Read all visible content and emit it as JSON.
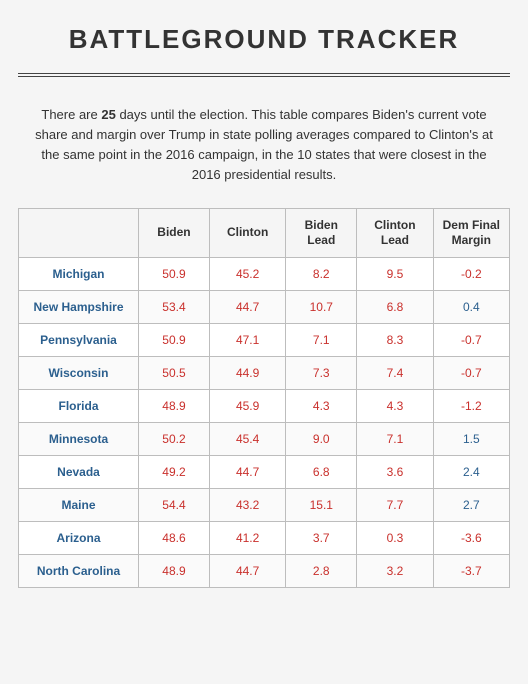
{
  "title": "BATTLEGROUND TRACKER",
  "intro_part1": "There are ",
  "days": "25",
  "intro_part2": " days until the election. This table compares Biden's current vote share and margin over Trump in state polling averages compared to Clinton's at the same point in the 2016 campaign, in the 10 states that were closest in the 2016 presidential results.",
  "columns": [
    "",
    "Biden",
    "Clinton",
    "Biden Lead",
    "Clinton Lead",
    "Dem Final Margin"
  ],
  "colors": {
    "red": "#c9302c",
    "blue": "#2b5f8e",
    "border": "#bdbdbd",
    "text": "#333333",
    "bg": "#f5f5f5"
  },
  "rows": [
    {
      "state": "Michigan",
      "biden": "50.9",
      "clinton": "45.2",
      "biden_lead": "8.2",
      "clinton_lead": "9.5",
      "margin": "-0.2",
      "margin_color": "red"
    },
    {
      "state": "New Hampshire",
      "biden": "53.4",
      "clinton": "44.7",
      "biden_lead": "10.7",
      "clinton_lead": "6.8",
      "margin": "0.4",
      "margin_color": "blue"
    },
    {
      "state": "Pennsylvania",
      "biden": "50.9",
      "clinton": "47.1",
      "biden_lead": "7.1",
      "clinton_lead": "8.3",
      "margin": "-0.7",
      "margin_color": "red"
    },
    {
      "state": "Wisconsin",
      "biden": "50.5",
      "clinton": "44.9",
      "biden_lead": "7.3",
      "clinton_lead": "7.4",
      "margin": "-0.7",
      "margin_color": "red"
    },
    {
      "state": "Florida",
      "biden": "48.9",
      "clinton": "45.9",
      "biden_lead": "4.3",
      "clinton_lead": "4.3",
      "margin": "-1.2",
      "margin_color": "red"
    },
    {
      "state": "Minnesota",
      "biden": "50.2",
      "clinton": "45.4",
      "biden_lead": "9.0",
      "clinton_lead": "7.1",
      "margin": "1.5",
      "margin_color": "blue"
    },
    {
      "state": "Nevada",
      "biden": "49.2",
      "clinton": "44.7",
      "biden_lead": "6.8",
      "clinton_lead": "3.6",
      "margin": "2.4",
      "margin_color": "blue"
    },
    {
      "state": "Maine",
      "biden": "54.4",
      "clinton": "43.2",
      "biden_lead": "15.1",
      "clinton_lead": "7.7",
      "margin": "2.7",
      "margin_color": "blue"
    },
    {
      "state": "Arizona",
      "biden": "48.6",
      "clinton": "41.2",
      "biden_lead": "3.7",
      "clinton_lead": "0.3",
      "margin": "-3.6",
      "margin_color": "red"
    },
    {
      "state": "North Carolina",
      "biden": "48.9",
      "clinton": "44.7",
      "biden_lead": "2.8",
      "clinton_lead": "3.2",
      "margin": "-3.7",
      "margin_color": "red"
    }
  ]
}
